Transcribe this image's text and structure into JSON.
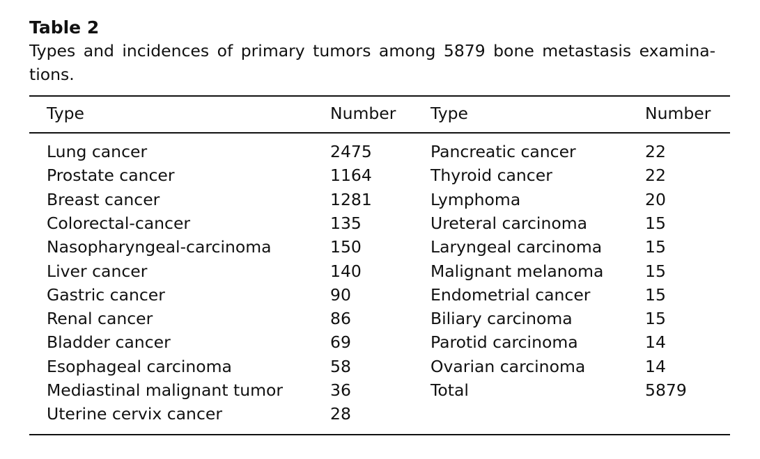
{
  "caption": {
    "label": "Table 2",
    "text": "Types and incidences of primary tumors among 5879 bone metastasis examina-tions."
  },
  "headers": {
    "type_left": "Type",
    "number_left": "Number",
    "type_right": "Type",
    "number_right": "Number"
  },
  "left_rows": [
    {
      "type": "Lung cancer",
      "number": "2475"
    },
    {
      "type": "Prostate cancer",
      "number": "1164"
    },
    {
      "type": "Breast cancer",
      "number": "1281"
    },
    {
      "type": "Colorectal-cancer",
      "number": "135"
    },
    {
      "type": "Nasopharyngeal-carcinoma",
      "number": "150"
    },
    {
      "type": "Liver cancer",
      "number": "140"
    },
    {
      "type": "Gastric cancer",
      "number": "90"
    },
    {
      "type": "Renal cancer",
      "number": "86"
    },
    {
      "type": "Bladder cancer",
      "number": "69"
    },
    {
      "type": "Esophageal carcinoma",
      "number": "58"
    },
    {
      "type": "Mediastinal malignant tumor",
      "number": "36"
    },
    {
      "type": "Uterine cervix cancer",
      "number": "28"
    }
  ],
  "right_rows": [
    {
      "type": "Pancreatic cancer",
      "number": "22"
    },
    {
      "type": "Thyroid cancer",
      "number": "22"
    },
    {
      "type": "Lymphoma",
      "number": "20"
    },
    {
      "type": "Ureteral carcinoma",
      "number": "15"
    },
    {
      "type": "Laryngeal carcinoma",
      "number": "15"
    },
    {
      "type": "Malignant melanoma",
      "number": "15"
    },
    {
      "type": "Endometrial cancer",
      "number": "15"
    },
    {
      "type": "Biliary carcinoma",
      "number": "15"
    },
    {
      "type": "Parotid carcinoma",
      "number": "14"
    },
    {
      "type": "Ovarian carcinoma",
      "number": "14"
    },
    {
      "type": "Total",
      "number": "5879"
    }
  ]
}
